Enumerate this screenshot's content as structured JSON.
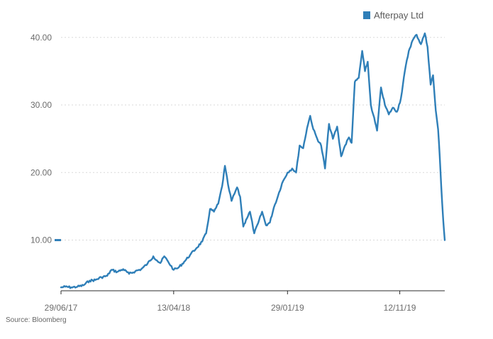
{
  "chart_data": {
    "type": "line",
    "legend": {
      "placement": "top-right",
      "label": "Afterpay Ltd"
    },
    "series": [
      {
        "name": "Afterpay Ltd",
        "color": "#2f7fb8",
        "points": [
          [
            "2017-06-29",
            3.0
          ],
          [
            "2017-07-10",
            3.1
          ],
          [
            "2017-07-25",
            3.0
          ],
          [
            "2017-08-10",
            3.1
          ],
          [
            "2017-08-25",
            3.3
          ],
          [
            "2017-09-10",
            4.0
          ],
          [
            "2017-09-25",
            4.1
          ],
          [
            "2017-10-10",
            4.5
          ],
          [
            "2017-10-25",
            4.7
          ],
          [
            "2017-11-05",
            5.6
          ],
          [
            "2017-11-20",
            5.3
          ],
          [
            "2017-12-05",
            5.7
          ],
          [
            "2017-12-20",
            5.0
          ],
          [
            "2018-01-05",
            5.4
          ],
          [
            "2018-01-20",
            5.7
          ],
          [
            "2018-02-05",
            6.5
          ],
          [
            "2018-02-20",
            7.6
          ],
          [
            "2018-03-01",
            7.0
          ],
          [
            "2018-03-10",
            6.6
          ],
          [
            "2018-03-20",
            7.6
          ],
          [
            "2018-03-30",
            6.8
          ],
          [
            "2018-04-13",
            5.6
          ],
          [
            "2018-04-25",
            5.9
          ],
          [
            "2018-05-10",
            6.8
          ],
          [
            "2018-05-25",
            7.8
          ],
          [
            "2018-06-10",
            8.8
          ],
          [
            "2018-06-25",
            9.8
          ],
          [
            "2018-07-05",
            11.0
          ],
          [
            "2018-07-15",
            14.6
          ],
          [
            "2018-07-25",
            14.2
          ],
          [
            "2018-08-05",
            15.4
          ],
          [
            "2018-08-15",
            18.0
          ],
          [
            "2018-08-22",
            21.0
          ],
          [
            "2018-08-30",
            18.2
          ],
          [
            "2018-09-08",
            15.8
          ],
          [
            "2018-09-15",
            16.8
          ],
          [
            "2018-09-22",
            17.8
          ],
          [
            "2018-09-30",
            16.4
          ],
          [
            "2018-10-08",
            12.0
          ],
          [
            "2018-10-15",
            13.0
          ],
          [
            "2018-10-25",
            14.2
          ],
          [
            "2018-11-05",
            11.0
          ],
          [
            "2018-11-15",
            12.5
          ],
          [
            "2018-11-25",
            14.2
          ],
          [
            "2018-12-05",
            12.2
          ],
          [
            "2018-12-15",
            12.6
          ],
          [
            "2018-12-25",
            14.8
          ],
          [
            "2019-01-05",
            16.6
          ],
          [
            "2019-01-15",
            18.4
          ],
          [
            "2019-01-29",
            20.0
          ],
          [
            "2019-02-10",
            20.6
          ],
          [
            "2019-02-20",
            20.0
          ],
          [
            "2019-03-01",
            24.0
          ],
          [
            "2019-03-10",
            23.6
          ],
          [
            "2019-03-20",
            26.6
          ],
          [
            "2019-03-28",
            28.4
          ],
          [
            "2019-04-05",
            26.4
          ],
          [
            "2019-04-15",
            25.0
          ],
          [
            "2019-04-25",
            24.0
          ],
          [
            "2019-05-05",
            20.6
          ],
          [
            "2019-05-15",
            27.2
          ],
          [
            "2019-05-25",
            25.0
          ],
          [
            "2019-06-05",
            26.8
          ],
          [
            "2019-06-15",
            22.4
          ],
          [
            "2019-06-25",
            24.0
          ],
          [
            "2019-07-05",
            25.2
          ],
          [
            "2019-07-12",
            24.4
          ],
          [
            "2019-07-20",
            33.4
          ],
          [
            "2019-07-30",
            34.0
          ],
          [
            "2019-08-08",
            38.0
          ],
          [
            "2019-08-15",
            35.0
          ],
          [
            "2019-08-22",
            36.4
          ],
          [
            "2019-08-30",
            30.0
          ],
          [
            "2019-09-05",
            28.6
          ],
          [
            "2019-09-15",
            26.2
          ],
          [
            "2019-09-25",
            32.6
          ],
          [
            "2019-10-05",
            30.0
          ],
          [
            "2019-10-15",
            28.6
          ],
          [
            "2019-10-25",
            29.6
          ],
          [
            "2019-11-05",
            29.0
          ],
          [
            "2019-11-15",
            31.0
          ],
          [
            "2019-11-25",
            35.0
          ],
          [
            "2019-12-05",
            38.0
          ],
          [
            "2019-12-15",
            39.6
          ],
          [
            "2019-12-25",
            40.4
          ],
          [
            "2020-01-05",
            39.0
          ],
          [
            "2020-01-15",
            40.6
          ],
          [
            "2020-01-22",
            38.6
          ],
          [
            "2020-01-30",
            33.0
          ],
          [
            "2020-02-05",
            34.4
          ],
          [
            "2020-02-12",
            29.2
          ],
          [
            "2020-02-18",
            26.4
          ],
          [
            "2020-02-22",
            22.6
          ],
          [
            "2020-02-26",
            18.0
          ],
          [
            "2020-03-02",
            13.0
          ],
          [
            "2020-03-06",
            10.0
          ]
        ]
      }
    ],
    "x_axis": {
      "type": "date",
      "range": [
        "2017-06-29",
        "2020-03-06"
      ],
      "ticks": [
        {
          "date": "2017-06-29",
          "label": "29/06/17"
        },
        {
          "date": "2018-04-13",
          "label": "13/04/18"
        },
        {
          "date": "2019-01-29",
          "label": "29/01/19"
        },
        {
          "date": "2019-11-12",
          "label": "12/11/19"
        }
      ]
    },
    "y_axis": {
      "range": [
        2.5,
        40.5
      ],
      "ticks": [
        {
          "value": 10,
          "label": "10.00"
        },
        {
          "value": 20,
          "label": "20.00"
        },
        {
          "value": 30,
          "label": "30.00"
        },
        {
          "value": 40,
          "label": "40.00"
        }
      ],
      "gridlines": true,
      "gridline_style": "dotted",
      "last_value_marker": 10.0
    }
  },
  "source": "Source: Bloomberg"
}
